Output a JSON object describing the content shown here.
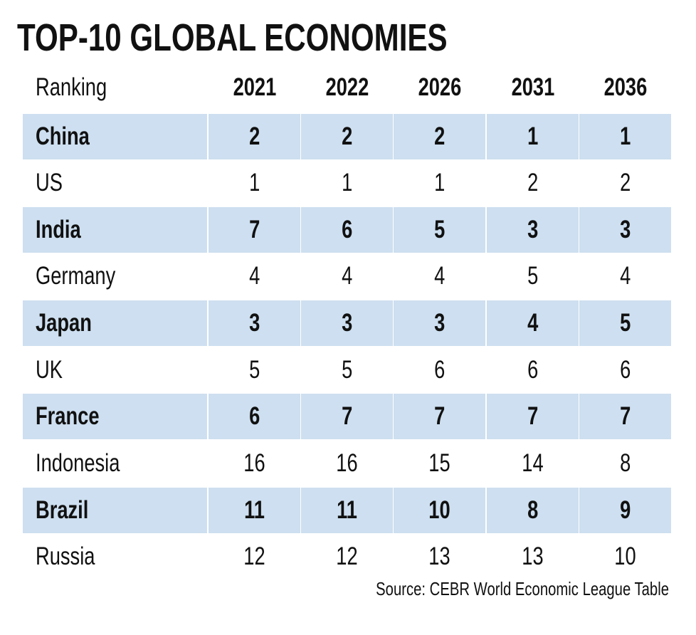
{
  "title": "TOP-10 GLOBAL ECONOMIES",
  "source": "Source: CEBR World Economic League Table",
  "colors": {
    "shaded_row": "#cddff0",
    "text": "#111111"
  },
  "chart_data": {
    "type": "table",
    "title": "TOP-10 GLOBAL ECONOMIES",
    "columns": [
      "Ranking",
      "2021",
      "2022",
      "2026",
      "2031",
      "2036"
    ],
    "rows": [
      {
        "country": "China",
        "values": [
          "2",
          "2",
          "2",
          "1",
          "1"
        ],
        "shaded": true
      },
      {
        "country": "US",
        "values": [
          "1",
          "1",
          "1",
          "2",
          "2"
        ],
        "shaded": false
      },
      {
        "country": "India",
        "values": [
          "7",
          "6",
          "5",
          "3",
          "3"
        ],
        "shaded": true
      },
      {
        "country": "Germany",
        "values": [
          "4",
          "4",
          "4",
          "5",
          "4"
        ],
        "shaded": false
      },
      {
        "country": "Japan",
        "values": [
          "3",
          "3",
          "3",
          "4",
          "5"
        ],
        "shaded": true
      },
      {
        "country": "UK",
        "values": [
          "5",
          "5",
          "6",
          "6",
          "6"
        ],
        "shaded": false
      },
      {
        "country": "France",
        "values": [
          "6",
          "7",
          "7",
          "7",
          "7"
        ],
        "shaded": true
      },
      {
        "country": "Indonesia",
        "values": [
          "16",
          "16",
          "15",
          "14",
          "8"
        ],
        "shaded": false
      },
      {
        "country": "Brazil",
        "values": [
          "11",
          "11",
          "10",
          "8",
          "9"
        ],
        "shaded": true
      },
      {
        "country": "Russia",
        "values": [
          "12",
          "12",
          "13",
          "13",
          "10"
        ],
        "shaded": false
      }
    ]
  }
}
